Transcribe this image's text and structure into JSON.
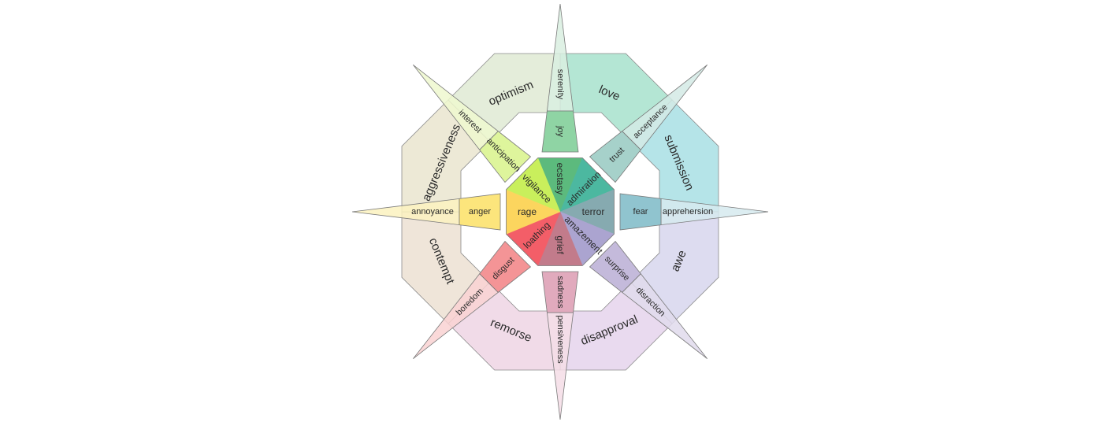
{
  "diagram": {
    "primaries": [
      {
        "intense": "ecstasy",
        "basic": "joy",
        "mild": "serenity",
        "intense_color": "#5cba7d",
        "basic_color": "#8fd4a4",
        "mild_color": "#d9efe1"
      },
      {
        "intense": "admiration",
        "basic": "trust",
        "mild": "acceptance",
        "intense_color": "#4cb8a0",
        "basic_color": "#a6d1ca",
        "mild_color": "#d3eae5"
      },
      {
        "intense": "terror",
        "basic": "fear",
        "mild": "apprehersion",
        "intense_color": "#86aab0",
        "basic_color": "#90c4cf",
        "mild_color": "#d6eaef"
      },
      {
        "intense": "amazement",
        "basic": "surprise",
        "mild": "disraction",
        "intense_color": "#aba4d0",
        "basic_color": "#c4badb",
        "mild_color": "#e0dbec"
      },
      {
        "intense": "grief",
        "basic": "sadness",
        "mild": "pensiveness",
        "intense_color": "#c27b8b",
        "basic_color": "#e1aabd",
        "mild_color": "#f5dde6"
      },
      {
        "intense": "loathing",
        "basic": "disgust",
        "mild": "boredom",
        "intense_color": "#f35e68",
        "basic_color": "#f49496",
        "mild_color": "#f9d2d2"
      },
      {
        "intense": "rage",
        "basic": "anger",
        "mild": "annoyance",
        "intense_color": "#fcd55e",
        "basic_color": "#fce57c",
        "mild_color": "#fcf2bf"
      },
      {
        "intense": "vigilance",
        "basic": "anticipation",
        "mild": "interest",
        "intense_color": "#c9ef5c",
        "basic_color": "#def59c",
        "mild_color": "#eff8cf"
      }
    ],
    "dyads": [
      {
        "label": "love",
        "color": "#b4e6d4"
      },
      {
        "label": "submission",
        "color": "#b5e4e8"
      },
      {
        "label": "awe",
        "color": "#dddcf0"
      },
      {
        "label": "disapproval",
        "color": "#e9daef"
      },
      {
        "label": "remorse",
        "color": "#f1dbe8"
      },
      {
        "label": "contempt",
        "color": "#efe5d9"
      },
      {
        "label": "aggressiveness",
        "color": "#ede9d6"
      },
      {
        "label": "optimism",
        "color": "#e4edda"
      }
    ]
  }
}
